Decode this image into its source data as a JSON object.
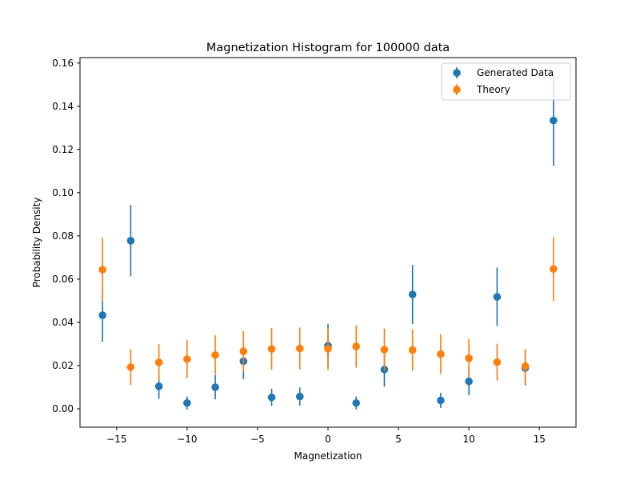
{
  "chart_data": {
    "type": "scatter",
    "title": "Magnetization Histogram for 100000 data",
    "xlabel": "Magnetization",
    "ylabel": "Probability Density",
    "xlim": [
      -17.6,
      17.6
    ],
    "ylim": [
      -0.0085,
      0.1625
    ],
    "xticks": [
      -15,
      -10,
      -5,
      0,
      5,
      10,
      15
    ],
    "xtick_labels": [
      "−15",
      "−10",
      "−5",
      "0",
      "5",
      "10",
      "15"
    ],
    "yticks": [
      0.0,
      0.02,
      0.04,
      0.06,
      0.08,
      0.1,
      0.12,
      0.14,
      0.16
    ],
    "ytick_labels": [
      "0.00",
      "0.02",
      "0.04",
      "0.06",
      "0.08",
      "0.10",
      "0.12",
      "0.14",
      "0.16"
    ],
    "grid": false,
    "legend_position": "top-right",
    "series": [
      {
        "name": "Generated Data",
        "color": "#1f77b4",
        "marker": "circle-with-errorbar",
        "x": [
          -16,
          -14,
          -12,
          -10,
          -8,
          -6,
          -4,
          -2,
          0,
          2,
          4,
          6,
          8,
          10,
          12,
          14,
          16
        ],
        "y": [
          0.0433,
          0.0778,
          0.0104,
          0.0027,
          0.01,
          0.022,
          0.0053,
          0.0057,
          0.0292,
          0.0027,
          0.0182,
          0.0529,
          0.0039,
          0.0127,
          0.0518,
          0.0189,
          0.1334
        ],
        "yerr": [
          0.0123,
          0.0165,
          0.0058,
          0.003,
          0.0056,
          0.0083,
          0.004,
          0.0042,
          0.01,
          0.003,
          0.008,
          0.0137,
          0.0035,
          0.0064,
          0.0135,
          0.008,
          0.021
        ]
      },
      {
        "name": "Theory",
        "color": "#ff7f0e",
        "marker": "circle-with-errorbar",
        "x": [
          -16,
          -14,
          -12,
          -10,
          -8,
          -6,
          -4,
          -2,
          0,
          2,
          4,
          6,
          8,
          10,
          12,
          14,
          16
        ],
        "y": [
          0.0644,
          0.0193,
          0.0215,
          0.023,
          0.0249,
          0.0266,
          0.0277,
          0.0279,
          0.0278,
          0.0289,
          0.0274,
          0.0272,
          0.0253,
          0.0234,
          0.0216,
          0.0197,
          0.0647
        ],
        "yerr": [
          0.0148,
          0.0082,
          0.0084,
          0.0088,
          0.0091,
          0.0094,
          0.0097,
          0.0097,
          0.0097,
          0.0098,
          0.0097,
          0.0095,
          0.0092,
          0.0089,
          0.0085,
          0.008,
          0.0148
        ]
      }
    ]
  }
}
